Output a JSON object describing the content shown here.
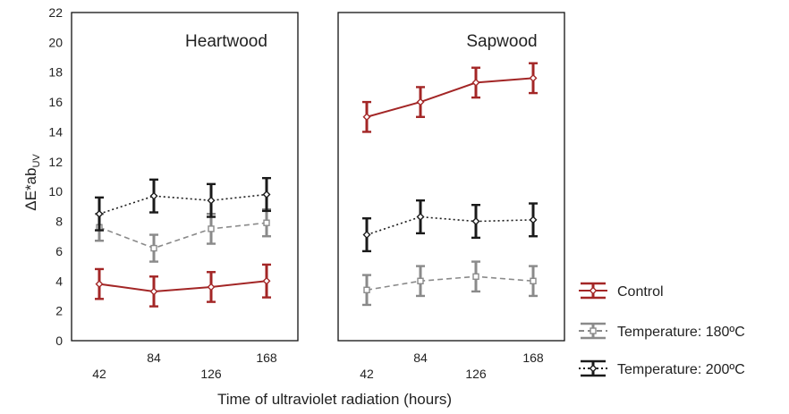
{
  "chart_data": {
    "type": "line",
    "y_axis": {
      "label_main": "ΔE*ab",
      "label_sub": "UV",
      "ylim": [
        0,
        22
      ],
      "ticks": [
        "0",
        "2",
        "4",
        "6",
        "8",
        "10",
        "12",
        "14",
        "16",
        "18",
        "20",
        "22"
      ]
    },
    "xlabel": "Time of ultraviolet radiation (hours)",
    "categories": [
      "42",
      "84",
      "126",
      "168"
    ],
    "grid": false,
    "legend_position": "right",
    "legend": [
      {
        "label": "Control",
        "color": "#a32626",
        "dash": "solid",
        "marker": "diamond"
      },
      {
        "label": "Temperature: 180ºC",
        "color": "#8a8a8a",
        "dash": "dashed",
        "marker": "square"
      },
      {
        "label": "Temperature: 200ºC",
        "color": "#1a1a1a",
        "dash": "dotted",
        "marker": "diamond"
      }
    ],
    "panels": [
      {
        "title": "Heartwood",
        "series": [
          {
            "series_index": 0,
            "values": [
              3.8,
              3.3,
              3.6,
              4.0
            ],
            "errors": [
              1.0,
              1.0,
              1.0,
              1.1
            ]
          },
          {
            "series_index": 1,
            "values": [
              7.6,
              6.2,
              7.5,
              7.9
            ],
            "errors": [
              0.9,
              0.9,
              1.0,
              0.9
            ]
          },
          {
            "series_index": 2,
            "values": [
              8.5,
              9.7,
              9.4,
              9.8
            ],
            "errors": [
              1.1,
              1.1,
              1.1,
              1.1
            ]
          }
        ]
      },
      {
        "title": "Sapwood",
        "series": [
          {
            "series_index": 0,
            "values": [
              15.0,
              16.0,
              17.3,
              17.6
            ],
            "errors": [
              1.0,
              1.0,
              1.0,
              1.0
            ]
          },
          {
            "series_index": 1,
            "values": [
              3.4,
              4.0,
              4.3,
              4.0
            ],
            "errors": [
              1.0,
              1.0,
              1.0,
              1.0
            ]
          },
          {
            "series_index": 2,
            "values": [
              7.1,
              8.3,
              8.0,
              8.1
            ],
            "errors": [
              1.1,
              1.1,
              1.1,
              1.1
            ]
          }
        ]
      }
    ]
  }
}
